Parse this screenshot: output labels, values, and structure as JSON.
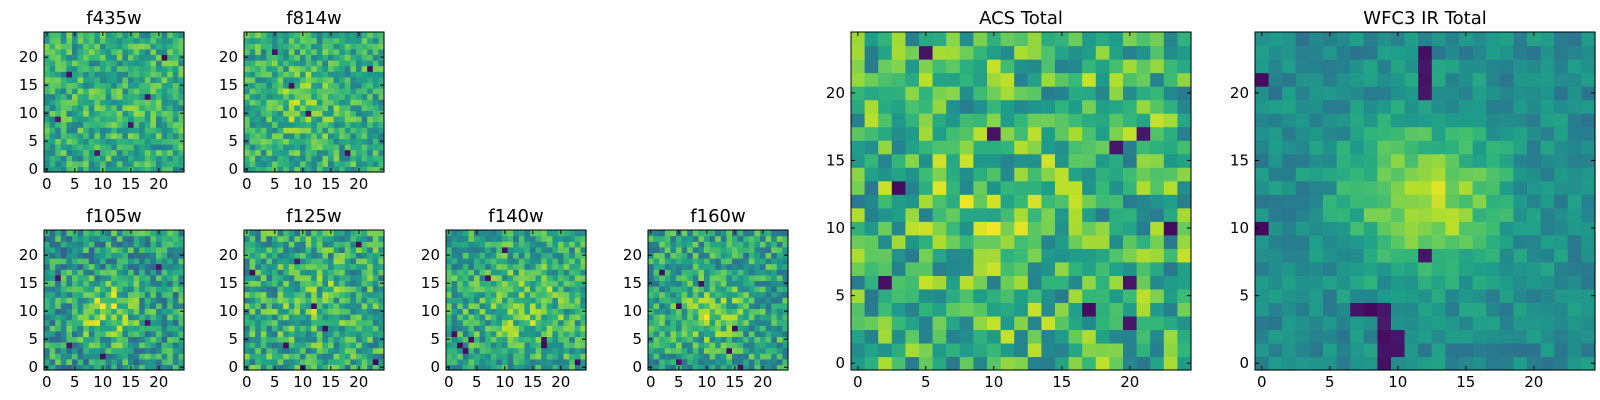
{
  "chart_data": [
    {
      "type": "heatmap",
      "title": "f435w",
      "colormap": "viridis",
      "xlim": [
        0,
        24
      ],
      "ylim": [
        0,
        24
      ],
      "xticks": [
        0,
        5,
        10,
        15,
        20
      ],
      "yticks": [
        0,
        5,
        10,
        15,
        20
      ],
      "xtick_labels": [
        "0",
        "5",
        "10",
        "15",
        "20"
      ],
      "ytick_labels": [
        "0",
        "5",
        "10",
        "15",
        "20"
      ],
      "grid": false,
      "seed": 11,
      "center": [
        12,
        12
      ],
      "blob_amp": 0.05,
      "blob_sigma": 4,
      "noise": 0.2,
      "base": 0.62,
      "dark_pixels": [
        [
          4,
          17
        ],
        [
          15,
          8
        ],
        [
          21,
          20
        ],
        [
          9,
          3
        ],
        [
          18,
          13
        ],
        [
          2,
          9
        ]
      ]
    },
    {
      "type": "heatmap",
      "title": "f814w",
      "colormap": "viridis",
      "xlim": [
        0,
        24
      ],
      "ylim": [
        0,
        24
      ],
      "xticks": [
        0,
        5,
        10,
        15,
        20
      ],
      "yticks": [
        0,
        5,
        10,
        15,
        20
      ],
      "xtick_labels": [
        "0",
        "5",
        "10",
        "15",
        "20"
      ],
      "ytick_labels": [
        "0",
        "5",
        "10",
        "15",
        "20"
      ],
      "grid": false,
      "seed": 23,
      "center": [
        10,
        12
      ],
      "blob_amp": 0.15,
      "blob_sigma": 4,
      "noise": 0.2,
      "base": 0.62,
      "dark_pixels": [
        [
          22,
          18
        ],
        [
          11,
          10
        ],
        [
          5,
          21
        ],
        [
          18,
          3
        ],
        [
          8,
          15
        ]
      ]
    },
    {
      "type": "heatmap",
      "title": "f105w",
      "colormap": "viridis",
      "xlim": [
        0,
        24
      ],
      "ylim": [
        0,
        24
      ],
      "xticks": [
        0,
        5,
        10,
        15,
        20
      ],
      "yticks": [
        0,
        5,
        10,
        15,
        20
      ],
      "xtick_labels": [
        "0",
        "5",
        "10",
        "15",
        "20"
      ],
      "ytick_labels": [
        "0",
        "5",
        "10",
        "15",
        "20"
      ],
      "grid": false,
      "seed": 37,
      "center": [
        11,
        10
      ],
      "blob_amp": 0.28,
      "blob_sigma": 3.5,
      "noise": 0.24,
      "base": 0.55,
      "dark_pixels": [
        [
          4,
          4
        ],
        [
          10,
          2
        ],
        [
          18,
          8
        ],
        [
          2,
          16
        ],
        [
          20,
          18
        ]
      ]
    },
    {
      "type": "heatmap",
      "title": "f125w",
      "colormap": "viridis",
      "xlim": [
        0,
        24
      ],
      "ylim": [
        0,
        24
      ],
      "xticks": [
        0,
        5,
        10,
        15,
        20
      ],
      "yticks": [
        0,
        5,
        10,
        15,
        20
      ],
      "xtick_labels": [
        "0",
        "5",
        "10",
        "15",
        "20"
      ],
      "ytick_labels": [
        "0",
        "5",
        "10",
        "15",
        "20"
      ],
      "grid": false,
      "seed": 41,
      "center": [
        12,
        12
      ],
      "blob_amp": 0.12,
      "blob_sigma": 4,
      "noise": 0.24,
      "base": 0.6,
      "dark_pixels": [
        [
          1,
          17
        ],
        [
          9,
          19
        ],
        [
          12,
          11
        ],
        [
          14,
          7
        ],
        [
          23,
          1
        ],
        [
          10,
          0
        ],
        [
          20,
          22
        ],
        [
          7,
          4
        ]
      ]
    },
    {
      "type": "heatmap",
      "title": "f140w",
      "colormap": "viridis",
      "xlim": [
        0,
        24
      ],
      "ylim": [
        0,
        24
      ],
      "xticks": [
        0,
        5,
        10,
        15,
        20
      ],
      "yticks": [
        0,
        5,
        10,
        15,
        20
      ],
      "xtick_labels": [
        "0",
        "5",
        "10",
        "15",
        "20"
      ],
      "ytick_labels": [
        "0",
        "5",
        "10",
        "15",
        "20"
      ],
      "grid": false,
      "seed": 53,
      "center": [
        14,
        11
      ],
      "blob_amp": 0.18,
      "blob_sigma": 4.5,
      "noise": 0.22,
      "base": 0.6,
      "dark_pixels": [
        [
          2,
          4
        ],
        [
          3,
          3
        ],
        [
          4,
          5
        ],
        [
          1,
          6
        ],
        [
          17,
          5
        ],
        [
          17,
          4
        ],
        [
          10,
          21
        ],
        [
          23,
          1
        ],
        [
          7,
          16
        ]
      ]
    },
    {
      "type": "heatmap",
      "title": "f160w",
      "colormap": "viridis",
      "xlim": [
        0,
        24
      ],
      "ylim": [
        0,
        24
      ],
      "xticks": [
        0,
        5,
        10,
        15,
        20
      ],
      "yticks": [
        0,
        5,
        10,
        15,
        20
      ],
      "xtick_labels": [
        "0",
        "5",
        "10",
        "15",
        "20"
      ],
      "ytick_labels": [
        "0",
        "5",
        "10",
        "15",
        "20"
      ],
      "grid": false,
      "seed": 67,
      "center": [
        11,
        10
      ],
      "blob_amp": 0.2,
      "blob_sigma": 4,
      "noise": 0.22,
      "base": 0.58,
      "dark_pixels": [
        [
          15,
          7
        ],
        [
          14,
          3
        ],
        [
          9,
          15
        ],
        [
          5,
          11
        ],
        [
          2,
          17
        ],
        [
          16,
          0
        ],
        [
          5,
          1
        ]
      ]
    },
    {
      "type": "heatmap",
      "title": "ACS Total",
      "colormap": "viridis",
      "xlim": [
        0,
        24
      ],
      "ylim": [
        0,
        24
      ],
      "xticks": [
        0,
        5,
        10,
        15,
        20
      ],
      "yticks": [
        0,
        5,
        10,
        15,
        20
      ],
      "xtick_labels": [
        "0",
        "5",
        "10",
        "15",
        "20"
      ],
      "ytick_labels": [
        "0",
        "5",
        "10",
        "15",
        "20"
      ],
      "grid": false,
      "seed": 79,
      "center": [
        10,
        11
      ],
      "blob_amp": 0.1,
      "blob_sigma": 3,
      "noise": 0.26,
      "base": 0.66,
      "dark_pixels": [
        [
          5,
          23
        ],
        [
          3,
          13
        ],
        [
          10,
          17
        ],
        [
          2,
          6
        ],
        [
          19,
          16
        ],
        [
          21,
          17
        ],
        [
          20,
          6
        ],
        [
          17,
          4
        ],
        [
          20,
          3
        ],
        [
          23,
          10
        ]
      ]
    },
    {
      "type": "heatmap",
      "title": "WFC3 IR Total",
      "colormap": "viridis",
      "xlim": [
        0,
        24
      ],
      "ylim": [
        0,
        24
      ],
      "xticks": [
        0,
        5,
        10,
        15,
        20
      ],
      "yticks": [
        0,
        5,
        10,
        15,
        20
      ],
      "xtick_labels": [
        "0",
        "5",
        "10",
        "15",
        "20"
      ],
      "ytick_labels": [
        "0",
        "5",
        "10",
        "15",
        "20"
      ],
      "grid": false,
      "seed": 83,
      "center": [
        12,
        12
      ],
      "blob_amp": 0.42,
      "blob_sigma": 3.8,
      "noise": 0.1,
      "base": 0.48,
      "dark_pixels": [
        [
          9,
          0
        ],
        [
          9,
          1
        ],
        [
          9,
          2
        ],
        [
          9,
          3
        ],
        [
          9,
          4
        ],
        [
          8,
          4
        ],
        [
          7,
          4
        ],
        [
          10,
          1
        ],
        [
          10,
          2
        ],
        [
          0,
          21
        ],
        [
          0,
          10
        ],
        [
          12,
          8
        ],
        [
          12,
          23
        ],
        [
          12,
          22
        ],
        [
          12,
          21
        ],
        [
          12,
          20
        ]
      ]
    }
  ]
}
